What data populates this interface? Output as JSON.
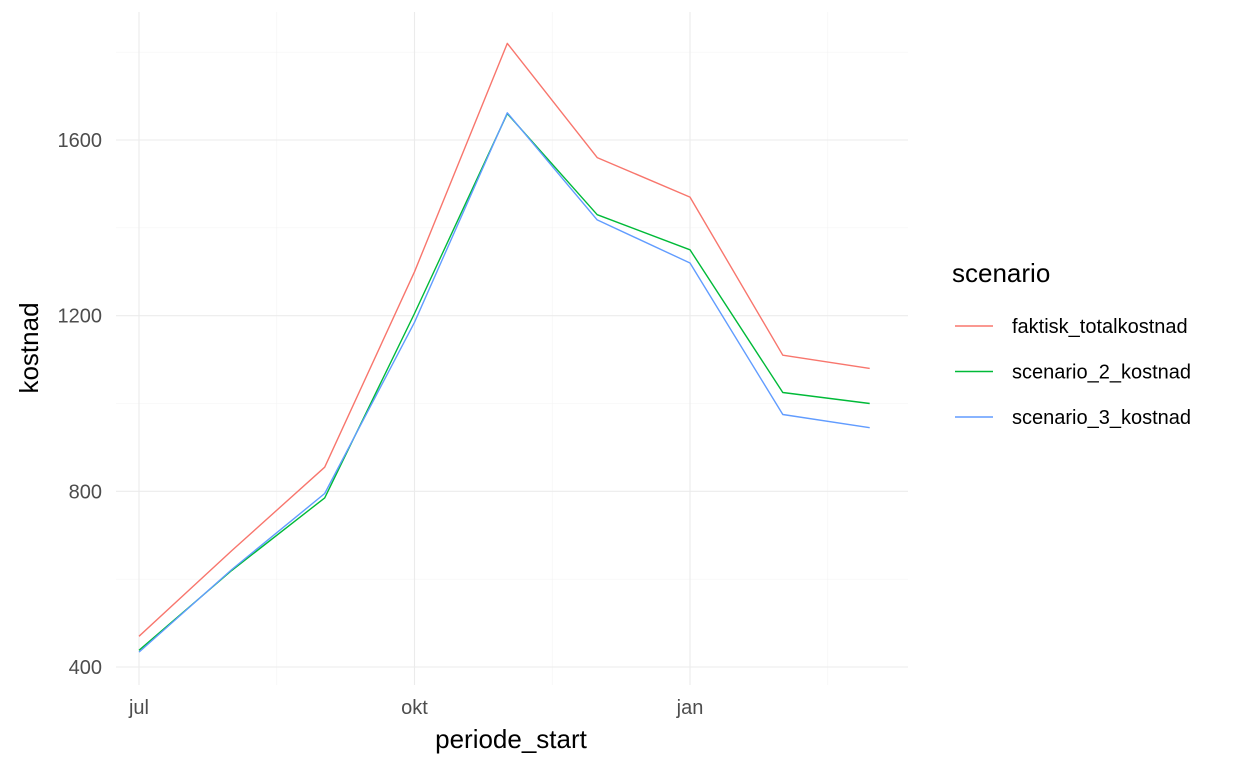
{
  "chart_data": {
    "type": "line",
    "xlabel": "periode_start",
    "ylabel": "kostnad",
    "x_ticks": [
      "jul",
      "okt",
      "jan"
    ],
    "y_ticks": [
      400,
      800,
      1200,
      1600
    ],
    "ylim": [
      380,
      1840
    ],
    "grid": true,
    "legend": {
      "title": "scenario",
      "position": "right"
    },
    "x": [
      "2023-07-01",
      "2023-08-01",
      "2023-09-01",
      "2023-10-01",
      "2023-11-01",
      "2023-12-01",
      "2024-01-01",
      "2024-02-01",
      "2024-03-01"
    ],
    "series": [
      {
        "name": "faktisk_totalkostnad",
        "color": "#F8766D",
        "values": [
          470,
          665,
          855,
          1300,
          1820,
          1560,
          1470,
          1110,
          1080
        ]
      },
      {
        "name": "scenario_2_kostnad",
        "color": "#00BA38",
        "values": [
          438,
          620,
          785,
          1205,
          1660,
          1430,
          1350,
          1025,
          1000
        ]
      },
      {
        "name": "scenario_3_kostnad",
        "color": "#619CFF",
        "values": [
          434,
          622,
          795,
          1185,
          1662,
          1418,
          1320,
          975,
          945
        ]
      }
    ]
  }
}
